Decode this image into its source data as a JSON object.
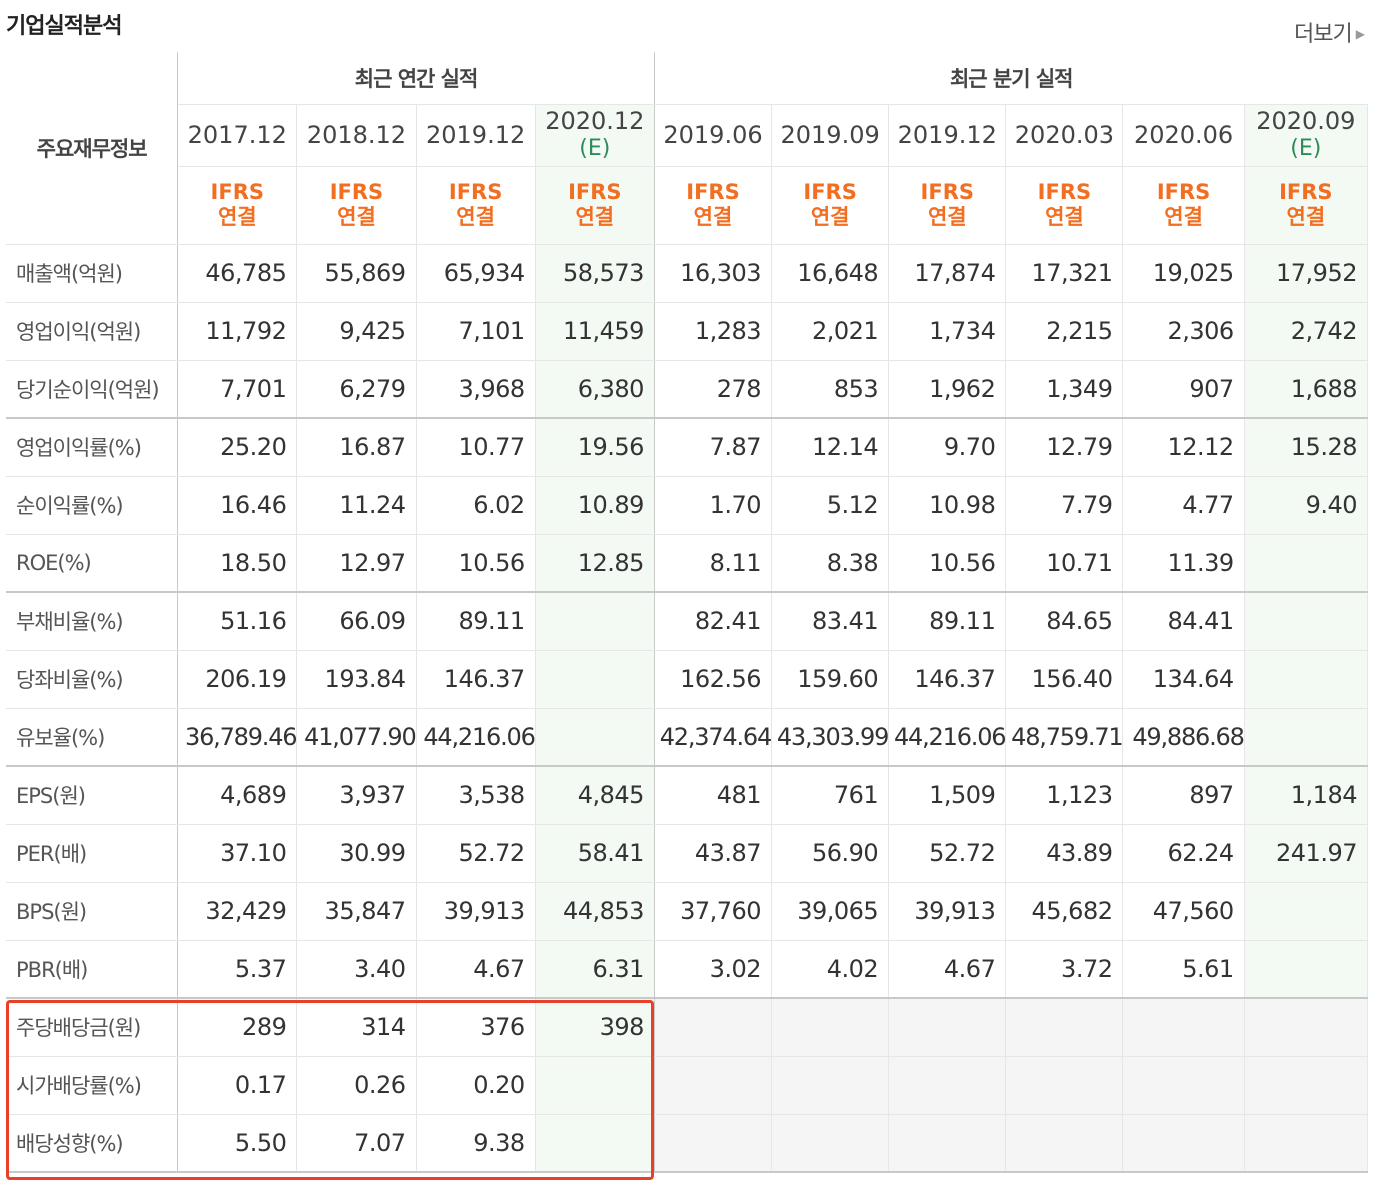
{
  "title": "기업실적분석",
  "more_label": "더보기",
  "groups": {
    "annual": "최근 연간 실적",
    "quarterly": "최근 분기 실적"
  },
  "corner_label": "주요재무정보",
  "periods": [
    {
      "date": "2017.12",
      "est": "",
      "ifrs1": "IFRS",
      "ifrs2": "연결"
    },
    {
      "date": "2018.12",
      "est": "",
      "ifrs1": "IFRS",
      "ifrs2": "연결"
    },
    {
      "date": "2019.12",
      "est": "",
      "ifrs1": "IFRS",
      "ifrs2": "연결"
    },
    {
      "date": "2020.12",
      "est": "(E)",
      "ifrs1": "IFRS",
      "ifrs2": "연결"
    },
    {
      "date": "2019.06",
      "est": "",
      "ifrs1": "IFRS",
      "ifrs2": "연결"
    },
    {
      "date": "2019.09",
      "est": "",
      "ifrs1": "IFRS",
      "ifrs2": "연결"
    },
    {
      "date": "2019.12",
      "est": "",
      "ifrs1": "IFRS",
      "ifrs2": "연결"
    },
    {
      "date": "2020.03",
      "est": "",
      "ifrs1": "IFRS",
      "ifrs2": "연결"
    },
    {
      "date": "2020.06",
      "est": "",
      "ifrs1": "IFRS",
      "ifrs2": "연결"
    },
    {
      "date": "2020.09",
      "est": "(E)",
      "ifrs1": "IFRS",
      "ifrs2": "연결"
    }
  ],
  "rows": [
    {
      "label": "매출액(억원)",
      "values": [
        "46,785",
        "55,869",
        "65,934",
        "58,573",
        "16,303",
        "16,648",
        "17,874",
        "17,321",
        "19,025",
        "17,952"
      ]
    },
    {
      "label": "영업이익(억원)",
      "values": [
        "11,792",
        "9,425",
        "7,101",
        "11,459",
        "1,283",
        "2,021",
        "1,734",
        "2,215",
        "2,306",
        "2,742"
      ]
    },
    {
      "label": "당기순이익(억원)",
      "values": [
        "7,701",
        "6,279",
        "3,968",
        "6,380",
        "278",
        "853",
        "1,962",
        "1,349",
        "907",
        "1,688"
      ]
    },
    {
      "label": "영업이익률(%)",
      "values": [
        "25.20",
        "16.87",
        "10.77",
        "19.56",
        "7.87",
        "12.14",
        "9.70",
        "12.79",
        "12.12",
        "15.28"
      ]
    },
    {
      "label": "순이익률(%)",
      "values": [
        "16.46",
        "11.24",
        "6.02",
        "10.89",
        "1.70",
        "5.12",
        "10.98",
        "7.79",
        "4.77",
        "9.40"
      ]
    },
    {
      "label": "ROE(%)",
      "values": [
        "18.50",
        "12.97",
        "10.56",
        "12.85",
        "8.11",
        "8.38",
        "10.56",
        "10.71",
        "11.39",
        ""
      ]
    },
    {
      "label": "부채비율(%)",
      "values": [
        "51.16",
        "66.09",
        "89.11",
        "",
        "82.41",
        "83.41",
        "89.11",
        "84.65",
        "84.41",
        ""
      ]
    },
    {
      "label": "당좌비율(%)",
      "values": [
        "206.19",
        "193.84",
        "146.37",
        "",
        "162.56",
        "159.60",
        "146.37",
        "156.40",
        "134.64",
        ""
      ]
    },
    {
      "label": "유보율(%)",
      "values": [
        "36,789.46",
        "41,077.90",
        "44,216.06",
        "",
        "42,374.64",
        "43,303.99",
        "44,216.06",
        "48,759.71",
        "49,886.68",
        ""
      ]
    },
    {
      "label": "EPS(원)",
      "values": [
        "4,689",
        "3,937",
        "3,538",
        "4,845",
        "481",
        "761",
        "1,509",
        "1,123",
        "897",
        "1,184"
      ]
    },
    {
      "label": "PER(배)",
      "values": [
        "37.10",
        "30.99",
        "52.72",
        "58.41",
        "43.87",
        "56.90",
        "52.72",
        "43.89",
        "62.24",
        "241.97"
      ]
    },
    {
      "label": "BPS(원)",
      "values": [
        "32,429",
        "35,847",
        "39,913",
        "44,853",
        "37,760",
        "39,065",
        "39,913",
        "45,682",
        "47,560",
        ""
      ]
    },
    {
      "label": "PBR(배)",
      "values": [
        "5.37",
        "3.40",
        "4.67",
        "6.31",
        "3.02",
        "4.02",
        "4.67",
        "3.72",
        "5.61",
        ""
      ]
    },
    {
      "label": "주당배당금(원)",
      "values": [
        "289",
        "314",
        "376",
        "398",
        "",
        "",
        "",
        "",
        "",
        ""
      ]
    },
    {
      "label": "시가배당률(%)",
      "values": [
        "0.17",
        "0.26",
        "0.20",
        "",
        "",
        "",
        "",
        "",
        "",
        ""
      ]
    },
    {
      "label": "배당성향(%)",
      "values": [
        "5.50",
        "7.07",
        "9.38",
        "",
        "",
        "",
        "",
        "",
        "",
        ""
      ]
    }
  ],
  "highlight_color": "#e8402a",
  "ifrs_color": "#f26e21",
  "estimate_color": "#2e8b57"
}
